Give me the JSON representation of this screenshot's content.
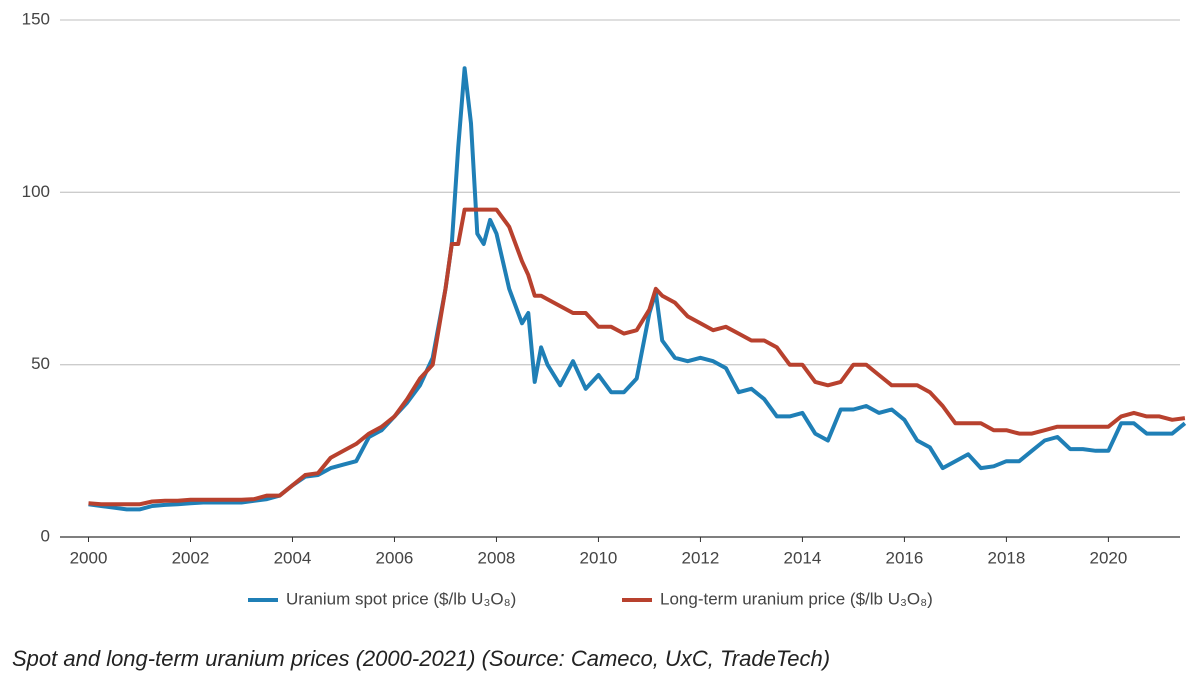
{
  "chart_data": {
    "type": "line",
    "caption": "Spot and long-term uranium prices (2000-2021) (Source: Cameco, UxC, TradeTech)",
    "x": [
      2000,
      2000.25,
      2000.5,
      2000.75,
      2001,
      2001.25,
      2001.5,
      2001.75,
      2002,
      2002.25,
      2002.5,
      2002.75,
      2003,
      2003.25,
      2003.5,
      2003.75,
      2004,
      2004.25,
      2004.5,
      2004.75,
      2005,
      2005.25,
      2005.5,
      2005.75,
      2006,
      2006.25,
      2006.5,
      2006.75,
      2007,
      2007.125,
      2007.25,
      2007.375,
      2007.5,
      2007.625,
      2007.75,
      2007.875,
      2008,
      2008.25,
      2008.5,
      2008.625,
      2008.75,
      2008.875,
      2009,
      2009.25,
      2009.5,
      2009.75,
      2010,
      2010.25,
      2010.5,
      2010.75,
      2011,
      2011.125,
      2011.25,
      2011.5,
      2011.75,
      2012,
      2012.25,
      2012.5,
      2012.75,
      2013,
      2013.25,
      2013.5,
      2013.75,
      2014,
      2014.25,
      2014.5,
      2014.75,
      2015,
      2015.25,
      2015.5,
      2015.75,
      2016,
      2016.25,
      2016.5,
      2016.75,
      2017,
      2017.25,
      2017.5,
      2017.75,
      2018,
      2018.25,
      2018.5,
      2018.75,
      2019,
      2019.25,
      2019.5,
      2019.75,
      2020,
      2020.25,
      2020.5,
      2020.75,
      2021,
      2021.25,
      2021.5
    ],
    "series": [
      {
        "name": "Uranium spot price ($/lb U₃O₈)",
        "color": "#1f7fb6",
        "values": [
          9.5,
          9,
          8.5,
          8,
          8,
          9,
          9.3,
          9.5,
          9.8,
          10,
          10,
          10,
          10,
          10.5,
          11,
          12,
          15,
          17.5,
          18,
          20,
          21,
          22,
          29,
          31,
          35,
          39,
          44,
          52,
          72,
          85,
          113,
          136,
          120,
          88,
          85,
          92,
          88,
          72,
          62,
          65,
          45,
          55,
          50,
          44,
          51,
          43,
          47,
          42,
          42,
          46,
          65,
          71,
          57,
          52,
          51,
          52,
          51,
          49,
          42,
          43,
          40,
          35,
          35,
          36,
          30,
          28,
          37,
          37,
          38,
          36,
          37,
          34,
          28,
          26,
          20,
          22,
          24,
          20,
          20.5,
          22,
          22,
          25,
          28,
          29,
          25.5,
          25.5,
          25,
          25,
          33,
          33,
          30,
          30,
          30,
          33
        ]
      },
      {
        "name": "Long-term uranium price ($/lb U₃O₈)",
        "color": "#b8412e",
        "values": [
          9.8,
          9.5,
          9.5,
          9.5,
          9.5,
          10.3,
          10.5,
          10.5,
          10.8,
          10.8,
          10.8,
          10.8,
          10.8,
          11,
          12,
          12,
          15,
          18,
          18.5,
          23,
          25,
          27,
          30,
          32,
          35,
          40,
          46,
          50,
          72,
          85,
          85,
          95,
          95,
          95,
          95,
          95,
          95,
          90,
          80,
          76,
          70,
          70,
          69,
          67,
          65,
          65,
          61,
          61,
          59,
          60,
          66,
          72,
          70,
          68,
          64,
          62,
          60,
          61,
          59,
          57,
          57,
          55,
          50,
          50,
          45,
          44,
          45,
          50,
          50,
          47,
          44,
          44,
          44,
          42,
          38,
          33,
          33,
          33,
          31,
          31,
          30,
          30,
          31,
          32,
          32,
          32,
          32,
          32,
          35,
          36,
          35,
          35,
          34,
          34.5
        ]
      }
    ],
    "xlim": [
      1999.5,
      2021.6
    ],
    "xticks": [
      2000,
      2002,
      2004,
      2006,
      2008,
      2010,
      2012,
      2014,
      2016,
      2018,
      2020
    ],
    "ylim": [
      0,
      150
    ],
    "yticks": [
      0,
      50,
      100,
      150
    ],
    "grid": true,
    "legend": "bottom"
  }
}
